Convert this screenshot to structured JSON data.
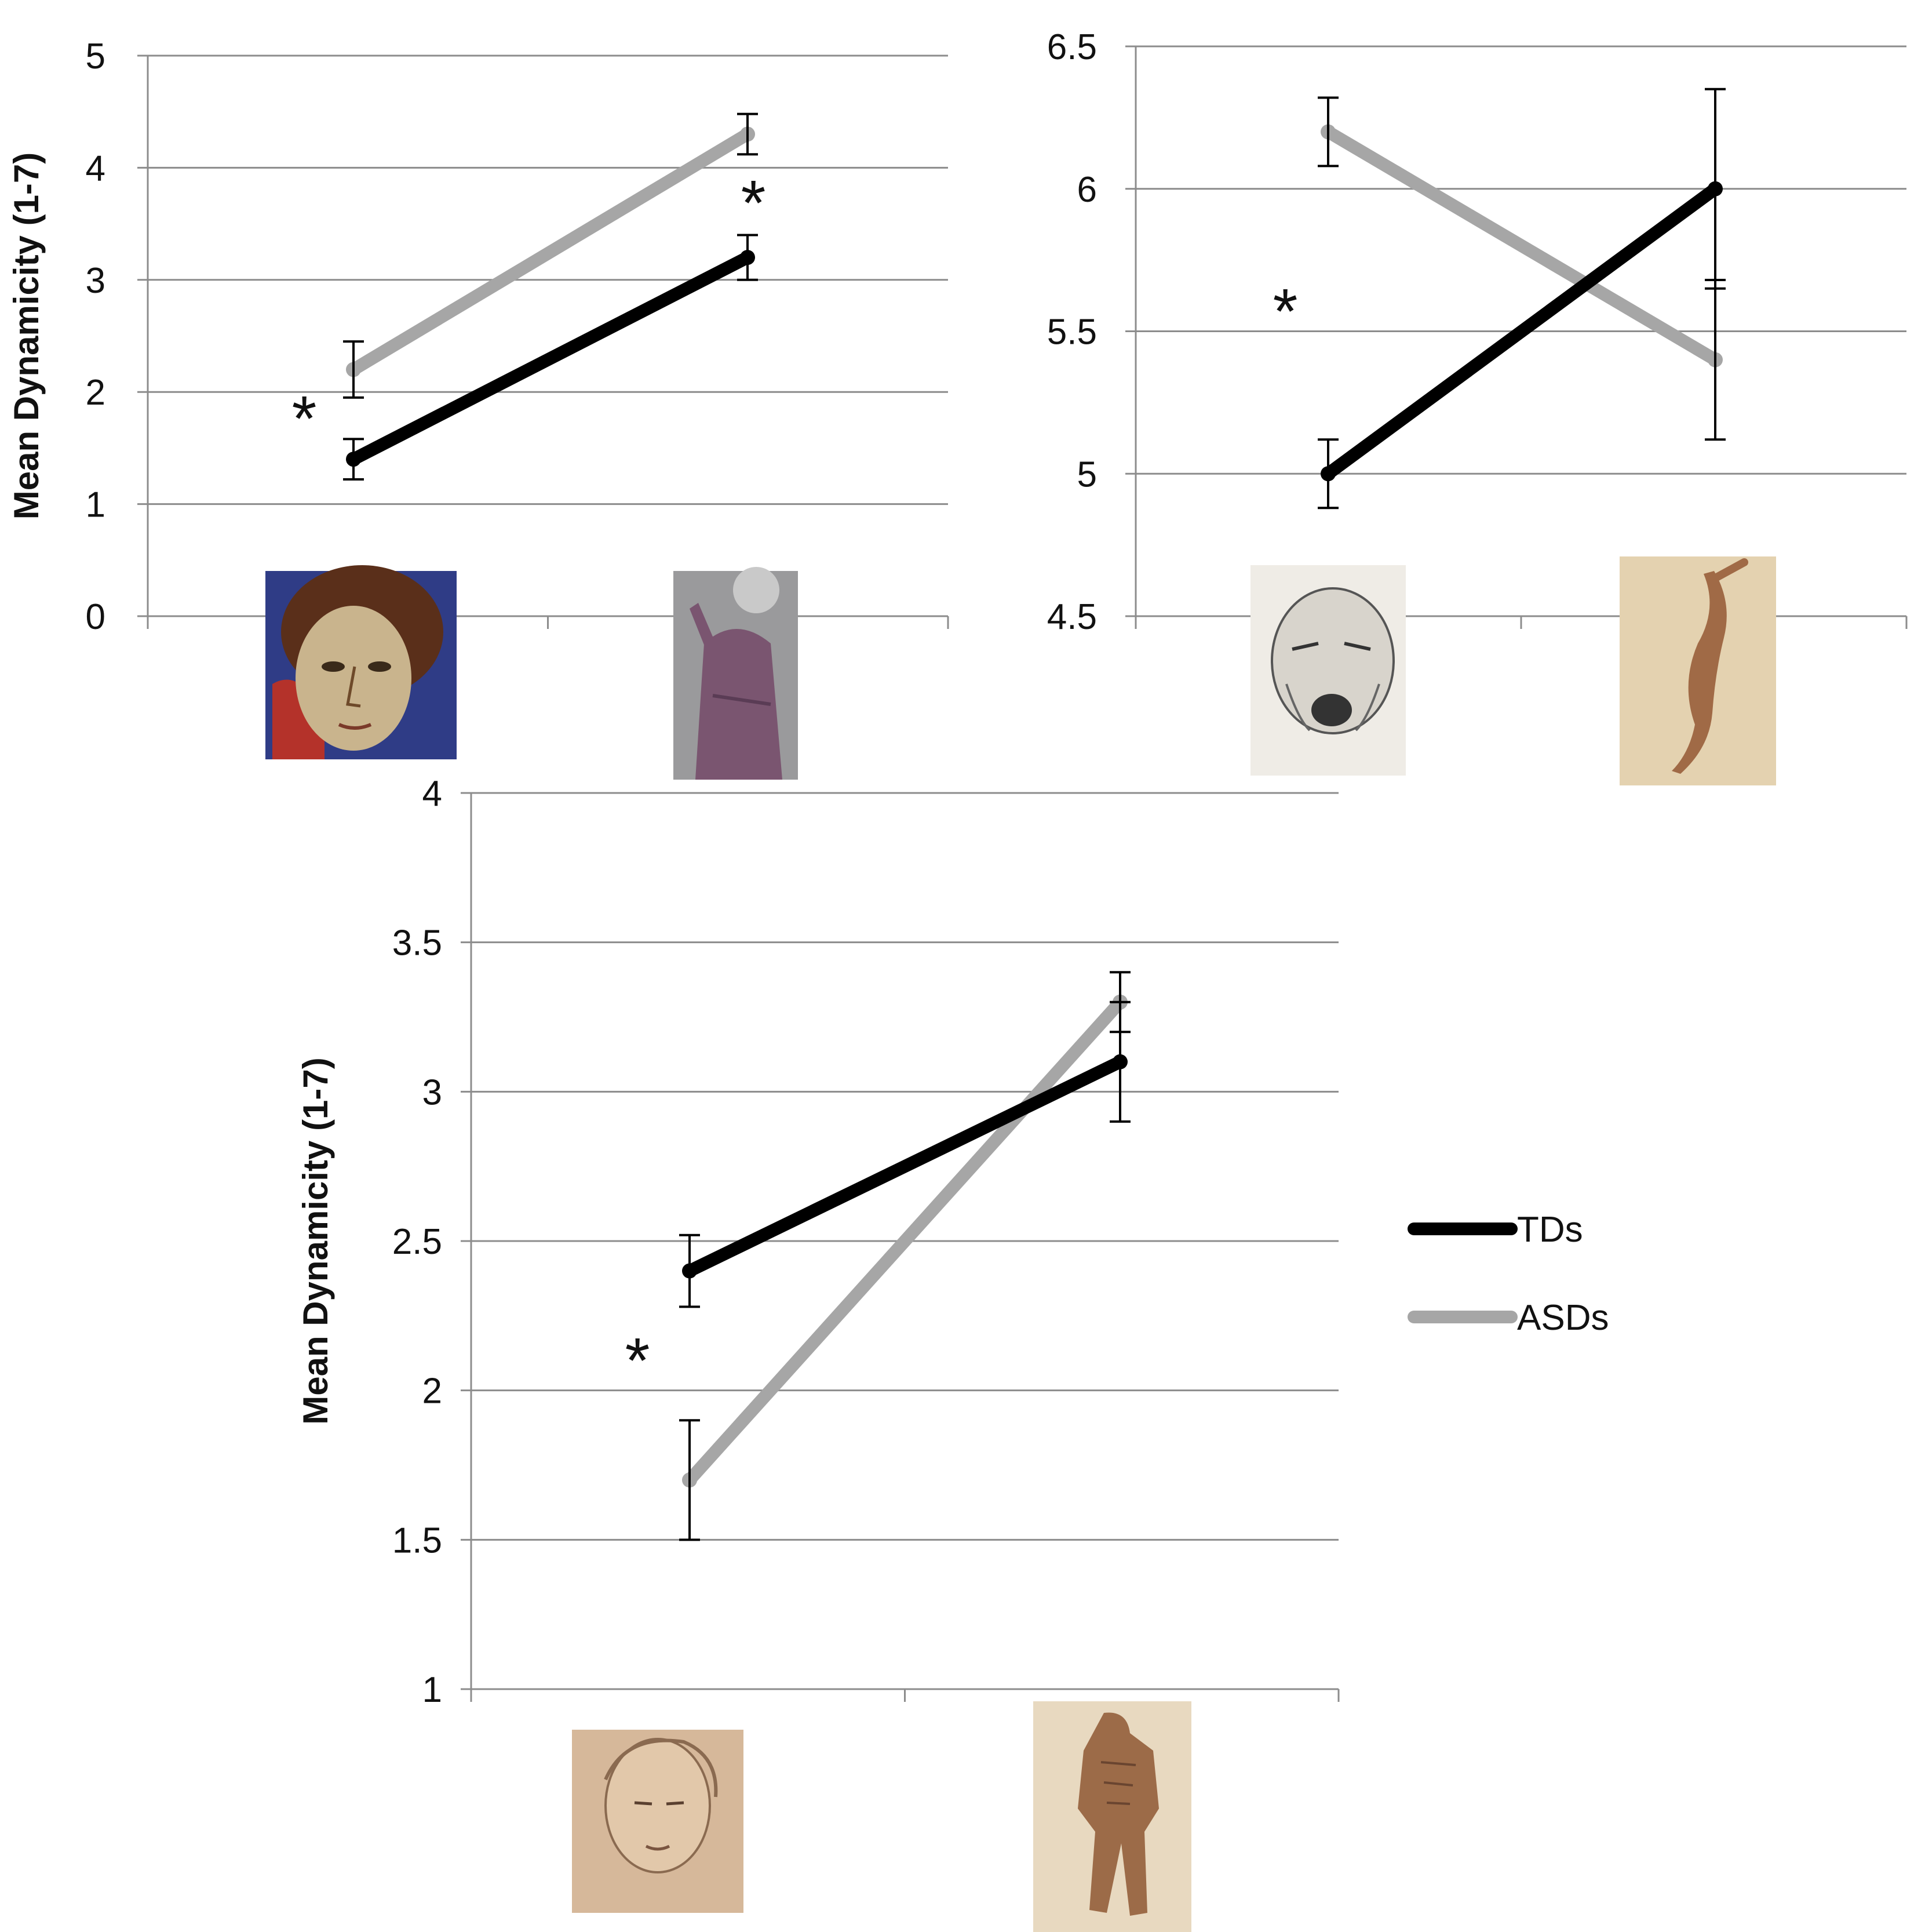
{
  "chart_data": [
    {
      "type": "line",
      "title": "",
      "xlabel": "",
      "ylabel": "Mean Dynamicity (1-7)",
      "ylim": [
        0,
        5
      ],
      "yticks": [
        "0",
        "1",
        "2",
        "3",
        "4",
        "5"
      ],
      "grid": true,
      "categories": [
        "Giotto face detail",
        "Giotto robed figure"
      ],
      "series": [
        {
          "name": "TDs",
          "color": "#000000",
          "values": [
            1.4,
            3.2
          ],
          "error": [
            0.18,
            0.2
          ]
        },
        {
          "name": "ASDs",
          "color": "#a6a6a6",
          "values": [
            2.2,
            4.3
          ],
          "error": [
            0.25,
            0.18
          ]
        }
      ],
      "annotations": [
        "*",
        "*"
      ]
    },
    {
      "type": "line",
      "title": "",
      "xlabel": "",
      "ylabel": "",
      "ylim": [
        4.5,
        6.5
      ],
      "yticks": [
        "4.5",
        "5",
        "5.5",
        "6",
        "6.5"
      ],
      "grid": true,
      "categories": [
        "Leonardo screaming head sketch",
        "Michelangelo figure study"
      ],
      "series": [
        {
          "name": "TDs",
          "color": "#000000",
          "values": [
            5.0,
            6.0
          ],
          "error": [
            0.12,
            0.35
          ]
        },
        {
          "name": "ASDs",
          "color": "#a6a6a6",
          "values": [
            6.2,
            5.4
          ],
          "error": [
            0.12,
            0.28
          ]
        }
      ],
      "annotations": [
        "*"
      ]
    },
    {
      "type": "line",
      "title": "",
      "xlabel": "",
      "ylabel": "Mean Dynamicity (1-7)",
      "ylim": [
        1,
        4
      ],
      "yticks": [
        "1",
        "1.5",
        "2",
        "2.5",
        "3",
        "3.5",
        "4"
      ],
      "grid": true,
      "categories": [
        "Leonardo woman head sketch",
        "Michelangelo nude figure study"
      ],
      "series": [
        {
          "name": "TDs",
          "color": "#000000",
          "values": [
            2.4,
            3.1
          ],
          "error": [
            0.12,
            0.2
          ]
        },
        {
          "name": "ASDs",
          "color": "#a6a6a6",
          "values": [
            1.7,
            3.3
          ],
          "error": [
            0.2,
            0.1
          ]
        }
      ],
      "annotations": [
        "*"
      ]
    }
  ],
  "legend": {
    "placement": "right",
    "items": [
      {
        "label": "TDs",
        "color": "#000000"
      },
      {
        "label": "ASDs",
        "color": "#a6a6a6"
      }
    ]
  }
}
